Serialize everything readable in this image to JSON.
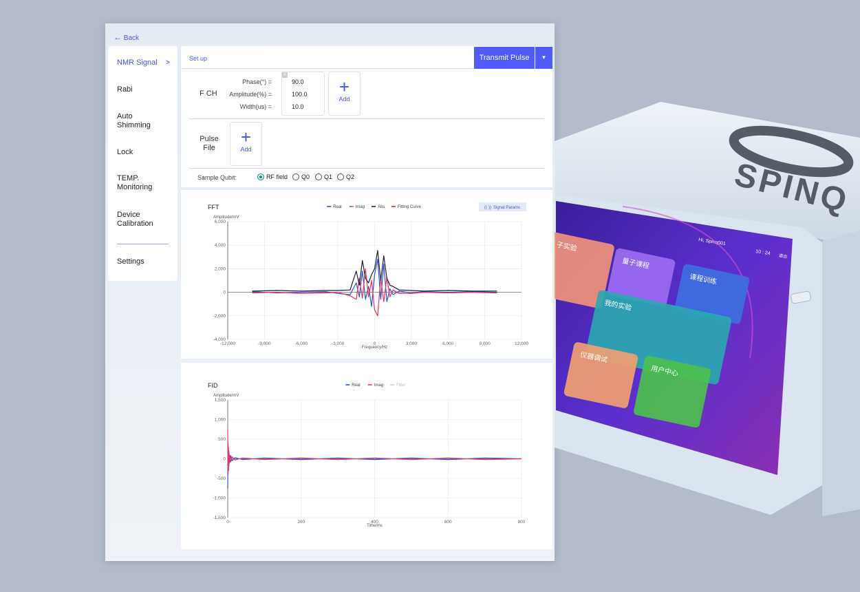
{
  "back": "Back",
  "nav": {
    "items": [
      "NMR Signal",
      "Rabi",
      "Auto Shimming",
      "Lock",
      "TEMP. Monitoring",
      "Device Calibration",
      "Settings"
    ]
  },
  "setup": {
    "tab": "Set up",
    "button": "Transmit Pulse",
    "fch": {
      "label": "F CH",
      "badge": "0",
      "params": [
        {
          "label": "Phase(°) =",
          "value": "90.0"
        },
        {
          "label": "Amplitude(%) =",
          "value": "100.0"
        },
        {
          "label": "Width(us) =",
          "value": "10.0"
        }
      ],
      "add": "Add"
    },
    "pulse_file": {
      "label": "Pulse File",
      "add": "Add"
    },
    "sample_qubit": {
      "label": "Sample Qubit:",
      "options": [
        "RF field",
        "Q0",
        "Q1",
        "Q2"
      ],
      "selected": "RF field"
    }
  },
  "chart_data": [
    {
      "type": "line",
      "title": "FFT",
      "action": "Signal Params",
      "y_label": "Amplitude/mV",
      "x_label": "Frequency/Hz",
      "x": [
        -10000,
        -8000,
        -6000,
        -4000,
        -3000,
        -2000,
        -1500,
        -1250,
        -1000,
        -750,
        -500,
        -250,
        0,
        250,
        500,
        750,
        1000,
        1250,
        1500,
        2000,
        3000,
        4000,
        6000,
        8000,
        10000
      ],
      "series": [
        {
          "name": "Real",
          "color": "#2c4fd6",
          "values": [
            50,
            -50,
            0,
            50,
            -100,
            -200,
            800,
            -400,
            1800,
            -600,
            500,
            -1200,
            1500,
            2800,
            -600,
            2400,
            -800,
            300,
            -200,
            100,
            -50,
            50,
            0,
            50,
            0
          ]
        },
        {
          "name": "Imag",
          "color": "#e8345a",
          "values": [
            -50,
            0,
            -100,
            -50,
            0,
            -300,
            -600,
            1200,
            -500,
            2000,
            -400,
            1000,
            -1500,
            -2000,
            1200,
            -800,
            1300,
            -400,
            200,
            -100,
            -100,
            0,
            -50,
            0,
            -50
          ]
        },
        {
          "name": "Abs",
          "color": "#1d1d3a",
          "values": [
            100,
            150,
            100,
            150,
            150,
            200,
            1800,
            600,
            2700,
            1200,
            800,
            1500,
            2000,
            3550,
            1000,
            3100,
            1200,
            600,
            500,
            200,
            150,
            100,
            150,
            100,
            100
          ]
        },
        {
          "name": "Fitting Curve",
          "color": "#c0392b",
          "values": [
            null,
            null,
            null,
            null,
            null,
            null,
            null,
            null,
            null,
            null,
            null,
            null,
            null,
            null,
            null,
            null,
            null,
            null,
            null,
            null,
            null,
            null,
            null,
            null,
            null
          ]
        }
      ],
      "xlim": [
        -12000,
        12000
      ],
      "xticks": [
        {
          "value": -12000,
          "label": "-12,000"
        },
        {
          "value": -9000,
          "label": "-9,000"
        },
        {
          "value": -6000,
          "label": "-6,000"
        },
        {
          "value": -3000,
          "label": "-3,000"
        },
        0,
        {
          "value": 3000,
          "label": "3,000"
        },
        {
          "value": 6000,
          "label": "6,000"
        },
        {
          "value": 9000,
          "label": "9,000"
        },
        {
          "value": 12000,
          "label": "12,000"
        }
      ],
      "ylim": [
        -4000,
        6000
      ],
      "yticks": [
        {
          "value": -4000,
          "label": "-4,000"
        },
        {
          "value": -2000,
          "label": "-2,000"
        },
        0,
        {
          "value": 2000,
          "label": "2,000"
        },
        {
          "value": 4000,
          "label": "4,000"
        },
        {
          "value": 6000,
          "label": "6,000"
        }
      ],
      "grid": true
    },
    {
      "type": "line",
      "title": "FID",
      "y_label": "Amplitude/mV",
      "x_label": "Time/ms",
      "x": [
        0,
        1,
        2,
        3,
        5,
        8,
        12,
        20,
        40,
        100,
        200,
        300,
        400,
        500,
        600,
        700,
        800
      ],
      "series": [
        {
          "name": "Real",
          "color": "#2c4fd6",
          "values": [
            -750,
            400,
            -300,
            200,
            -100,
            80,
            -50,
            30,
            -20,
            20,
            -20,
            20,
            -20,
            20,
            -20,
            20,
            0
          ]
        },
        {
          "name": "Imag",
          "color": "#e8345a",
          "values": [
            750,
            -400,
            300,
            -200,
            100,
            -80,
            50,
            -30,
            20,
            -20,
            20,
            -20,
            20,
            -20,
            20,
            -20,
            0
          ]
        },
        {
          "name": "Filter",
          "color": "#cfcfcf",
          "values": [
            null,
            null,
            null,
            null,
            null,
            null,
            null,
            null,
            null,
            null,
            null,
            null,
            null,
            null,
            null,
            null,
            null
          ]
        }
      ],
      "xlim": [
        0,
        800
      ],
      "xticks": [
        0,
        200,
        400,
        600,
        800
      ],
      "ylim": [
        -1500,
        1500
      ],
      "yticks": [
        {
          "value": -1500,
          "label": "-1,500"
        },
        {
          "value": -1000,
          "label": "-1,000"
        },
        -500,
        0,
        500,
        {
          "value": 1000,
          "label": "1,000"
        },
        {
          "value": 1500,
          "label": "1,500"
        }
      ],
      "grid": true
    }
  ],
  "device": {
    "brand": "SPINQ",
    "greeting": "Hi, Spinq001",
    "clock": "10 : 24",
    "logout": "退出",
    "tiles": [
      "子实验",
      "量子课程",
      "课程训练",
      "我的实验",
      "仪器调试",
      "用户中心"
    ]
  }
}
